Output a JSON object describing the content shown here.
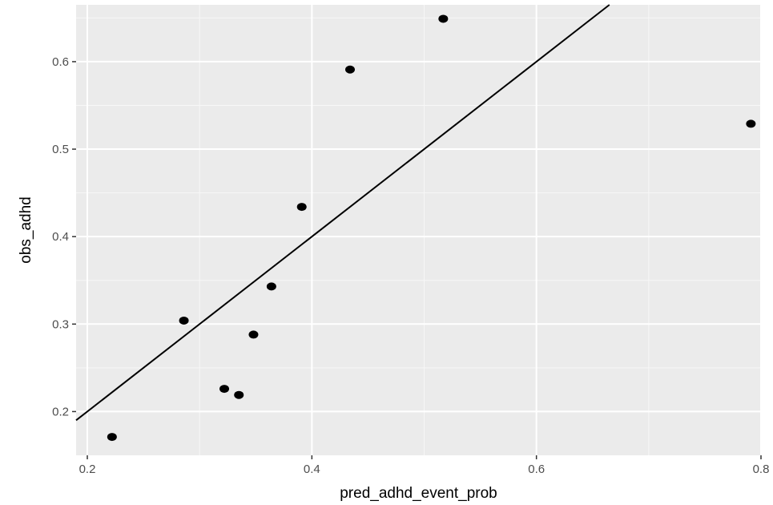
{
  "chart_data": {
    "type": "scatter",
    "title": "",
    "xlabel": "pred_adhd_event_prob",
    "ylabel": "obs_adhd",
    "xlim": [
      0.19,
      0.8
    ],
    "ylim": [
      0.15,
      0.665
    ],
    "x_ticks": [
      0.2,
      0.4,
      0.6,
      0.8
    ],
    "x_tick_labels": [
      "0.2",
      "0.4",
      "0.6",
      "0.8"
    ],
    "y_ticks": [
      0.2,
      0.3,
      0.4,
      0.5,
      0.6
    ],
    "y_tick_labels": [
      "0.2",
      "0.3",
      "0.4",
      "0.5",
      "0.6"
    ],
    "grid": true,
    "points": [
      {
        "x": 0.222,
        "y": 0.171
      },
      {
        "x": 0.286,
        "y": 0.304
      },
      {
        "x": 0.322,
        "y": 0.226
      },
      {
        "x": 0.335,
        "y": 0.219
      },
      {
        "x": 0.348,
        "y": 0.288
      },
      {
        "x": 0.364,
        "y": 0.343
      },
      {
        "x": 0.391,
        "y": 0.434
      },
      {
        "x": 0.434,
        "y": 0.591
      },
      {
        "x": 0.517,
        "y": 0.649
      },
      {
        "x": 0.791,
        "y": 0.529
      }
    ],
    "reference_line": {
      "slope": 1,
      "intercept": 0
    }
  },
  "colors": {
    "panel_background": "#ebebeb",
    "grid_major": "#ffffff",
    "grid_minor": "#f7f7f7",
    "points": "#000000",
    "line": "#000000"
  }
}
